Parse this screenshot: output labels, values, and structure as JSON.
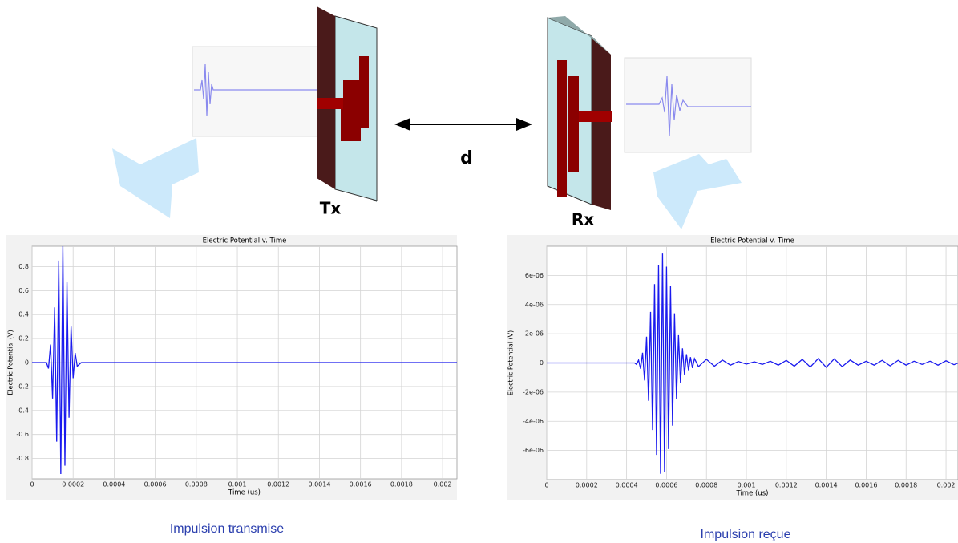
{
  "diagram": {
    "tx_label": "Tx",
    "rx_label": "Rx",
    "distance_label": "d"
  },
  "captions": [
    "Impulsion transmise",
    "Impulsion reçue"
  ],
  "chart_data": [
    {
      "type": "line",
      "title": "Electric Potential v. Time",
      "x_label": "Time (us)",
      "y_label": "Electric Potential (V)",
      "x": [
        0,
        7e-05,
        8e-05,
        9e-05,
        0.0001,
        0.00011,
        0.00012,
        0.00013,
        0.00014,
        0.00015,
        0.00016,
        0.00017,
        0.00018,
        0.00019,
        0.0002,
        0.00021,
        0.00022,
        0.00024,
        0.00207
      ],
      "series": [
        {
          "color": "#1a1aee",
          "values": [
            0,
            0,
            -0.05,
            0.15,
            -0.3,
            0.46,
            -0.66,
            0.85,
            -0.93,
            0.97,
            -0.86,
            0.67,
            -0.46,
            0.3,
            -0.13,
            0.08,
            -0.03,
            0,
            0
          ]
        }
      ],
      "xlim": [
        0,
        0.00207
      ],
      "ylim": [
        -0.97,
        0.97
      ],
      "xticks": [
        0,
        0.0002,
        0.0004,
        0.0006,
        0.0008,
        0.001,
        0.0012,
        0.0014,
        0.0016,
        0.0018,
        0.002
      ],
      "yticks": [
        -0.8,
        -0.6,
        -0.4,
        -0.2,
        0,
        0.2,
        0.4,
        0.6,
        0.8
      ],
      "grid": true
    },
    {
      "type": "line",
      "title": "Electric Potential v. Time",
      "x_label": "Time (us)",
      "y_label": "Electric Potential (V)",
      "x": [
        0,
        0.00044,
        0.00045,
        0.00046,
        0.00047,
        0.00048,
        0.00049,
        0.0005,
        0.00051,
        0.00052,
        0.00053,
        0.00054,
        0.00055,
        0.00056,
        0.00057,
        0.00058,
        0.00059,
        0.0006,
        0.00061,
        0.00062,
        0.00063,
        0.00064,
        0.00065,
        0.00066,
        0.00067,
        0.00068,
        0.00069,
        0.0007,
        0.00071,
        0.00072,
        0.00073,
        0.00074,
        0.00076,
        0.0008,
        0.00084,
        0.00088,
        0.00092,
        0.00096,
        0.001,
        0.00104,
        0.00108,
        0.00112,
        0.00116,
        0.0012,
        0.00124,
        0.00128,
        0.00132,
        0.00136,
        0.0014,
        0.00144,
        0.00148,
        0.00152,
        0.00156,
        0.0016,
        0.00164,
        0.00168,
        0.00172,
        0.00176,
        0.0018,
        0.00184,
        0.00188,
        0.00192,
        0.00196,
        0.002,
        0.00204,
        0.00206
      ],
      "series": [
        {
          "color": "#1a1aee",
          "values": [
            0,
            0,
            -1e-07,
            2e-07,
            -4e-07,
            7e-07,
            -1.2e-06,
            1.8e-06,
            -2.6e-06,
            3.5e-06,
            -4.6e-06,
            5.4e-06,
            -6.3e-06,
            6.7e-06,
            -7.6e-06,
            7.5e-06,
            -7.5e-06,
            6.6e-06,
            -5.9e-06,
            5.3e-06,
            -4.3e-06,
            3.4e-06,
            -2.5e-06,
            1.9e-06,
            -1.4e-06,
            1e-06,
            -8e-07,
            6e-07,
            -5e-07,
            4e-07,
            -3.5e-07,
            3e-07,
            -2.5e-07,
            2.5e-07,
            -2.2e-07,
            2e-07,
            -1.5e-07,
            1e-07,
            -8e-08,
            8e-08,
            -1e-07,
            1.2e-07,
            -1.5e-07,
            1.8e-07,
            -2.2e-07,
            2.5e-07,
            -2.8e-07,
            3e-07,
            -3e-07,
            2.8e-07,
            -2.5e-07,
            2e-07,
            -1.5e-07,
            1.2e-07,
            -1.5e-07,
            1.8e-07,
            -2e-07,
            1.8e-07,
            -1.5e-07,
            1.2e-07,
            -1e-07,
            1.2e-07,
            -1.5e-07,
            1.5e-07,
            -1.2e-07,
            0
          ]
        }
      ],
      "xlim": [
        0,
        0.00206
      ],
      "ylim": [
        -8e-06,
        8e-06
      ],
      "xticks": [
        0,
        0.0002,
        0.0004,
        0.0006,
        0.0008,
        0.001,
        0.0012,
        0.0014,
        0.0016,
        0.0018,
        0.002
      ],
      "yticks": [
        {
          "value": -6e-06,
          "label": "-6e-06"
        },
        {
          "value": -4e-06,
          "label": "-4e-06"
        },
        {
          "value": -2e-06,
          "label": "-2e-06"
        },
        0,
        {
          "value": 2e-06,
          "label": "2e-06"
        },
        {
          "value": 4e-06,
          "label": "4e-06"
        },
        {
          "value": 6e-06,
          "label": "6e-06"
        }
      ],
      "grid": true
    }
  ]
}
